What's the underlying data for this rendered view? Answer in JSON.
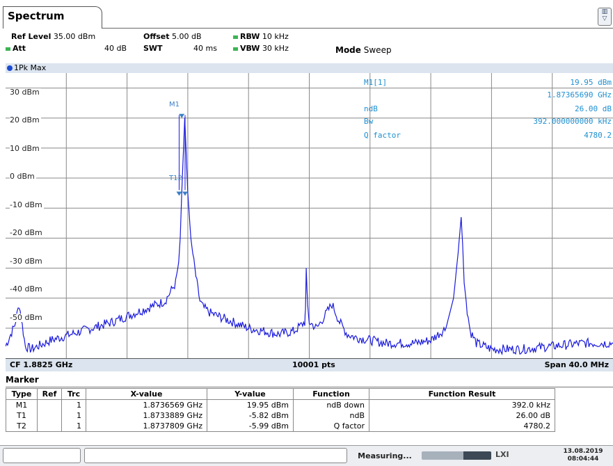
{
  "tab": {
    "title": "Spectrum"
  },
  "settings": {
    "ref_level_label": "Ref Level",
    "ref_level_value": "35.00 dBm",
    "offset_label": "Offset",
    "offset_value": "5.00 dB",
    "rbw_label": "RBW",
    "rbw_value": "10 kHz",
    "att_label": "Att",
    "att_value": "40 dB",
    "swt_label": "SWT",
    "swt_value": "40 ms",
    "vbw_label": "VBW",
    "vbw_value": "30 kHz",
    "mode_label": "Mode",
    "mode_value": "Sweep"
  },
  "trace": {
    "label": "1Pk Max",
    "color": "#1a1adc"
  },
  "y_axis": {
    "labels": [
      "30 dBm",
      "20 dBm",
      "10 dBm",
      "0 dBm",
      "-10 dBm",
      "-20 dBm",
      "-30 dBm",
      "-40 dBm",
      "-50 dBm"
    ]
  },
  "markers_on_plot": {
    "m1": "M1",
    "t12": "T12"
  },
  "marker_info": {
    "name": "M1[1]",
    "level": "19.95 dBm",
    "freq": "1.87365690 GHz",
    "ndb_label": "ndB",
    "ndb_value": "26.00 dB",
    "bw_label": "Bw",
    "bw_value": "392.000000000 kHz",
    "q_label": "Q factor",
    "q_value": "4780.2"
  },
  "footer": {
    "cf": "CF 1.8825 GHz",
    "pts": "10001 pts",
    "span": "Span 40.0 MHz"
  },
  "marker_table": {
    "title": "Marker",
    "headers": [
      "Type",
      "Ref",
      "Trc",
      "X-value",
      "Y-value",
      "Function",
      "Function Result"
    ],
    "rows": [
      [
        "M1",
        "",
        "1",
        "1.8736569 GHz",
        "19.95 dBm",
        "ndB down",
        "392.0 kHz"
      ],
      [
        "T1",
        "",
        "1",
        "1.8733889 GHz",
        "-5.82 dBm",
        "ndB",
        "26.00 dB"
      ],
      [
        "T2",
        "",
        "1",
        "1.8737809 GHz",
        "-5.99 dBm",
        "Q factor",
        "4780.2"
      ]
    ]
  },
  "status": {
    "measuring": "Measuring...",
    "logo": "LXI",
    "date": "13.08.2019",
    "time": "08:04:44"
  },
  "chart_data": {
    "type": "line",
    "ylim": [
      -60,
      35
    ],
    "x_span_mhz": [
      -20,
      20
    ],
    "series": [
      {
        "name": "1Pk Max",
        "x_mhz": [
          -20,
          -19.4,
          -19.1,
          -18.9,
          -18.7,
          -18.3,
          -17,
          -15,
          -13,
          -11,
          -9.5,
          -8.8,
          -8.6,
          -8.5,
          -8.4,
          -8.2,
          -8.0,
          -7.8,
          -7.6,
          -7.4,
          -7.2,
          -7.0,
          -6.5,
          -6,
          -5,
          -4,
          -3,
          -2,
          -1,
          -0.3,
          -0.25,
          -0.2,
          -0.1,
          0,
          0.5,
          1.0,
          1.5,
          2.0,
          2.5,
          3,
          4,
          5,
          6,
          7,
          8,
          9,
          9.5,
          9.8,
          10.0,
          10.1,
          10.2,
          10.4,
          10.6,
          11,
          12,
          14,
          16,
          18,
          20
        ],
        "y_dbm": [
          -56,
          -49,
          -42,
          -49,
          -56,
          -57,
          -54,
          -51,
          -48,
          -44,
          -41,
          -35,
          -28,
          -20,
          -5,
          20,
          -5,
          -20,
          -28,
          -35,
          -41,
          -43,
          -45,
          -46,
          -48,
          -50,
          -51,
          -52,
          -51,
          -48,
          -44,
          -30,
          -44,
          -48,
          -50,
          -46,
          -42,
          -48,
          -52,
          -53,
          -54,
          -55,
          -55,
          -55,
          -54,
          -50,
          -40,
          -25,
          -13,
          -22,
          -35,
          -44,
          -51,
          -55,
          -57,
          -57,
          -56,
          -55,
          -55
        ]
      }
    ]
  }
}
